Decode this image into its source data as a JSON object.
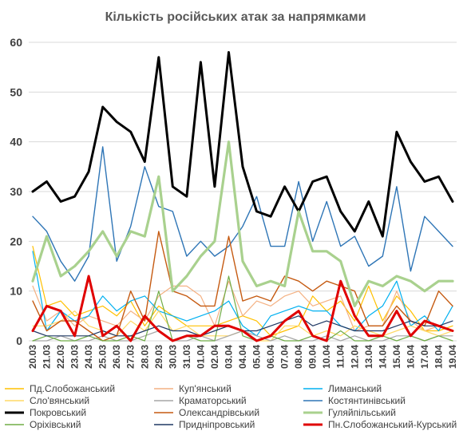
{
  "chart_data": {
    "type": "line",
    "title": "Кількість російських атак за напрямками",
    "xlabel": "",
    "ylabel": "",
    "ylim": [
      0,
      60
    ],
    "yticks": [
      0,
      10,
      20,
      30,
      40,
      50,
      60
    ],
    "grid": "horizontal",
    "legend": "bottom",
    "x": [
      "20.03",
      "21.03",
      "22.03",
      "23.03",
      "24.03",
      "25.03",
      "26.03",
      "27.03",
      "28.03",
      "29.03",
      "30.03",
      "31.03",
      "01.04",
      "02.04",
      "03.04",
      "04.04",
      "05.04",
      "06.04",
      "07.04",
      "08.04",
      "09.04",
      "10.04",
      "11.04",
      "12.04",
      "13.04",
      "14.04",
      "15.04",
      "16.04",
      "17.04",
      "18.04",
      "19.04"
    ],
    "series": [
      {
        "name": "Пд.Слобожанський",
        "color": "#FFC000",
        "width": 1.2,
        "values": [
          19,
          7,
          8,
          5,
          6,
          7,
          5,
          8,
          3,
          7,
          5,
          3,
          3,
          3,
          4,
          5,
          4,
          1,
          2,
          3,
          9,
          6,
          8,
          4,
          11,
          4,
          9,
          6,
          2,
          2,
          3
        ]
      },
      {
        "name": "Куп'янський",
        "color": "#F4B183",
        "width": 1.2,
        "values": [
          11,
          4,
          6,
          3,
          5,
          4,
          3,
          6,
          4,
          9,
          11,
          11,
          9,
          3,
          12,
          5,
          8,
          7,
          9,
          10,
          7,
          8,
          9,
          2,
          3,
          3,
          10,
          4,
          2,
          3,
          2
        ]
      },
      {
        "name": "Лиманський",
        "color": "#00B0F0",
        "width": 1.2,
        "values": [
          18,
          2,
          6,
          4,
          5,
          9,
          6,
          8,
          9,
          6,
          5,
          4,
          5,
          6,
          8,
          3,
          1,
          5,
          6,
          7,
          6,
          6,
          3,
          2,
          5,
          7,
          12,
          3,
          5,
          2,
          7
        ]
      },
      {
        "name": "Сло'вянський",
        "color": "#FFD966",
        "width": 1.2,
        "values": [
          3,
          3,
          4,
          6,
          3,
          2,
          1,
          4,
          2,
          6,
          2,
          3,
          1,
          1,
          1,
          2,
          0,
          0,
          3,
          3,
          1,
          2,
          1,
          3,
          2,
          1,
          2,
          3,
          2,
          1,
          2
        ]
      },
      {
        "name": "Краматорський",
        "color": "#A6A6A6",
        "width": 1.2,
        "values": [
          0,
          0,
          1,
          0,
          0,
          1,
          0,
          0,
          1,
          2,
          0,
          0,
          1,
          0,
          1,
          2,
          1,
          0,
          1,
          0,
          0,
          1,
          0,
          1,
          0,
          0,
          1,
          1,
          0,
          1,
          1
        ]
      },
      {
        "name": "Костянтинівський",
        "color": "#2E75B6",
        "width": 1.4,
        "values": [
          25,
          22,
          16,
          12,
          17,
          39,
          16,
          23,
          35,
          27,
          26,
          17,
          20,
          17,
          19,
          23,
          29,
          19,
          19,
          32,
          20,
          28,
          19,
          21,
          15,
          17,
          31,
          14,
          25,
          22,
          19
        ]
      },
      {
        "name": "Покровський",
        "color": "#000000",
        "width": 3,
        "values": [
          30,
          32,
          28,
          29,
          34,
          47,
          44,
          42,
          36,
          57,
          31,
          29,
          56,
          31,
          58,
          35,
          26,
          25,
          31,
          26,
          32,
          33,
          26,
          22,
          28,
          21,
          42,
          36,
          32,
          33,
          28
        ]
      },
      {
        "name": "Олександрівський",
        "color": "#C55A11",
        "width": 1.4,
        "values": [
          8,
          2,
          4,
          4,
          2,
          0,
          1,
          10,
          4,
          22,
          10,
          9,
          7,
          7,
          21,
          8,
          9,
          8,
          13,
          12,
          10,
          12,
          11,
          10,
          3,
          3,
          7,
          4,
          3,
          10,
          7
        ]
      },
      {
        "name": "Гуляйпільський",
        "color": "#A9D18E",
        "width": 3.2,
        "values": [
          12,
          21,
          13,
          15,
          18,
          22,
          17,
          22,
          21,
          33,
          10,
          13,
          17,
          20,
          40,
          16,
          11,
          12,
          11,
          26,
          18,
          18,
          16,
          7,
          12,
          11,
          13,
          12,
          10,
          12,
          12
        ]
      },
      {
        "name": "Оріхівський",
        "color": "#70AD47",
        "width": 1.2,
        "values": [
          0,
          1,
          0,
          0,
          1,
          0,
          0,
          1,
          0,
          10,
          0,
          1,
          0,
          0,
          13,
          1,
          0,
          1,
          0,
          0,
          1,
          0,
          2,
          0,
          0,
          1,
          0,
          1,
          0,
          1,
          0
        ]
      },
      {
        "name": "Придніпровський",
        "color": "#1F3864",
        "width": 1.2,
        "values": [
          2,
          1,
          1,
          1,
          1,
          2,
          1,
          1,
          2,
          3,
          2,
          2,
          1,
          2,
          3,
          2,
          2,
          3,
          4,
          5,
          3,
          4,
          3,
          2,
          2,
          2,
          3,
          4,
          3,
          3,
          4
        ]
      },
      {
        "name": "Пн.Слобожанський-Курський",
        "color": "#E00000",
        "width": 3,
        "values": [
          2,
          7,
          6,
          1,
          13,
          1,
          3,
          0,
          5,
          2,
          0,
          1,
          1,
          3,
          3,
          2,
          0,
          1,
          4,
          6,
          1,
          0,
          12,
          5,
          1,
          1,
          6,
          1,
          4,
          3,
          2
        ]
      }
    ]
  }
}
